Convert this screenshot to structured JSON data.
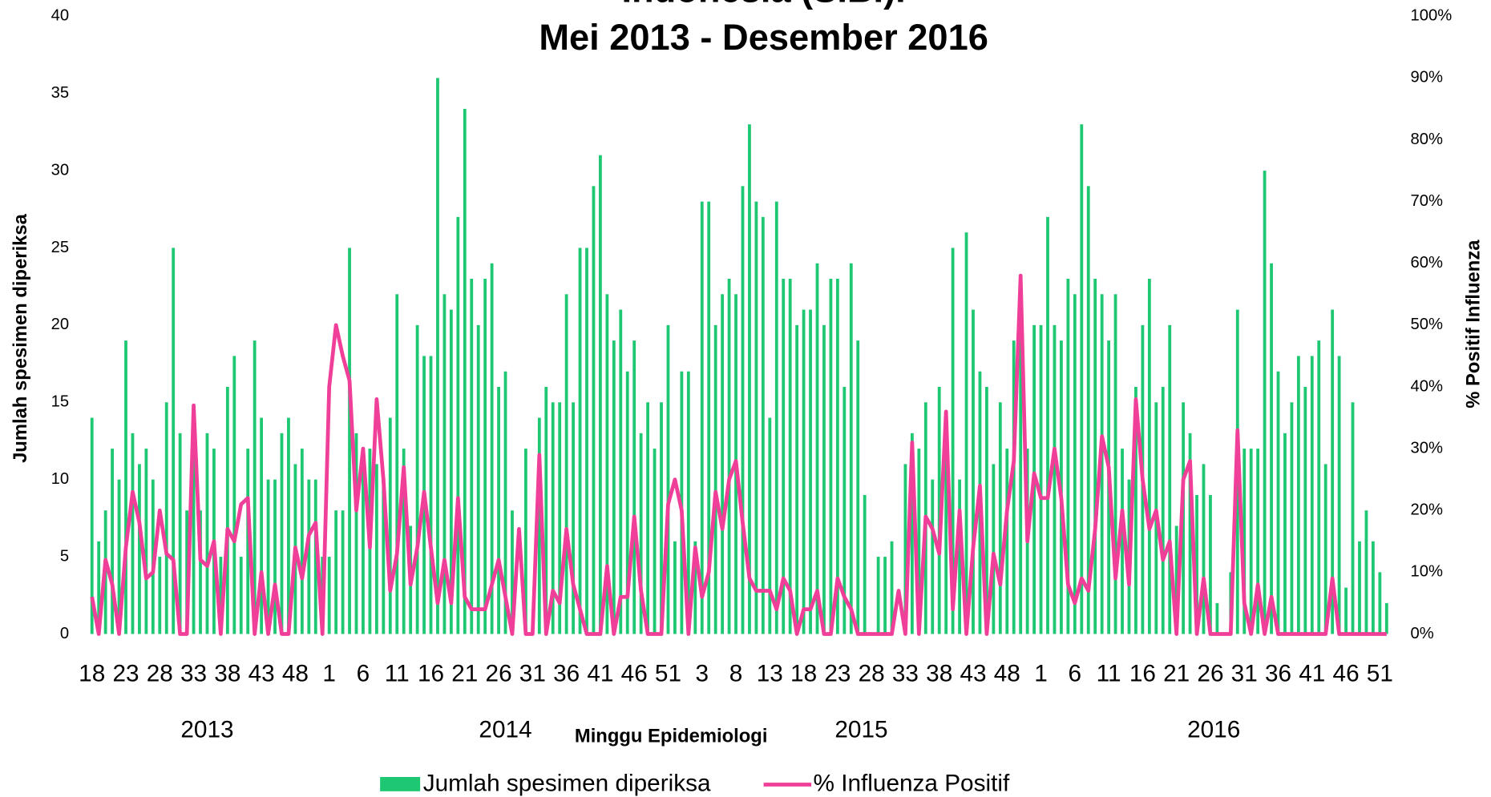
{
  "chart_data": {
    "type": "bar-line",
    "title": [
      "Indonesia (SIBI).",
      "Mei 2013 - Desember 2016"
    ],
    "x_label": "Minggu Epidemiologi",
    "y_label": "Jumlah spesimen diperiksa",
    "y2_label": "% Positif Influenza",
    "years": [
      {
        "label": "2013",
        "categories": [
          18,
          null,
          null,
          null,
          null,
          23,
          null,
          null,
          null,
          null,
          28,
          null,
          null,
          null,
          null,
          33,
          null,
          null,
          null,
          null,
          38,
          null,
          null,
          null,
          null,
          43,
          null,
          null,
          null,
          null,
          48,
          null,
          null,
          null,
          null
        ]
      },
      {
        "label": "2014",
        "categories": [
          1,
          null,
          null,
          null,
          null,
          6,
          null,
          null,
          null,
          null,
          11,
          null,
          null,
          null,
          null,
          16,
          null,
          null,
          null,
          null,
          21,
          null,
          null,
          null,
          null,
          26,
          null,
          null,
          null,
          null,
          31,
          null,
          null,
          null,
          null,
          36,
          null,
          null,
          null,
          null,
          41,
          null,
          null,
          null,
          null,
          46,
          null,
          null,
          null,
          null,
          51,
          null,
          null
        ]
      },
      {
        "label": "2015",
        "categories": [
          null,
          null,
          3,
          null,
          null,
          null,
          null,
          8,
          null,
          null,
          null,
          null,
          13,
          null,
          null,
          null,
          null,
          18,
          null,
          null,
          null,
          null,
          23,
          null,
          null,
          null,
          null,
          28,
          null,
          null,
          null,
          null,
          33,
          null,
          null,
          null,
          null,
          38,
          null,
          null,
          null,
          null,
          43,
          null,
          null,
          null,
          null,
          48,
          null,
          null,
          null,
          null
        ]
      },
      {
        "label": "2016",
        "categories": [
          1,
          null,
          null,
          null,
          null,
          6,
          null,
          null,
          null,
          null,
          11,
          null,
          null,
          null,
          null,
          16,
          null,
          null,
          null,
          null,
          21,
          null,
          null,
          null,
          null,
          26,
          null,
          null,
          null,
          null,
          31,
          null,
          null,
          null,
          null,
          36,
          null,
          null,
          null,
          null,
          41,
          null,
          null,
          null,
          null,
          46,
          null,
          null,
          null,
          null,
          51,
          null
        ]
      }
    ],
    "series": [
      {
        "name": "Jumlah spesimen diperiksa",
        "type": "bar",
        "color": "#1ec873",
        "values": [
          14,
          6,
          8,
          12,
          10,
          19,
          13,
          11,
          12,
          10,
          5,
          15,
          25,
          13,
          8,
          12,
          8,
          13,
          12,
          5,
          16,
          18,
          5,
          12,
          19,
          14,
          10,
          10,
          13,
          14,
          11,
          12,
          10,
          10,
          5,
          5,
          8,
          8,
          25,
          13,
          12,
          12,
          11,
          10,
          14,
          22,
          12,
          7,
          20,
          18,
          18,
          36,
          22,
          21,
          27,
          34,
          23,
          20,
          23,
          24,
          16,
          17,
          8,
          0,
          12,
          0,
          14,
          16,
          15,
          15,
          22,
          15,
          25,
          25,
          29,
          31,
          22,
          19,
          21,
          17,
          19,
          13,
          15,
          12,
          15,
          20,
          6,
          17,
          17,
          6,
          28,
          28,
          20,
          22,
          23,
          22,
          29,
          33,
          28,
          27,
          14,
          28,
          23,
          23,
          20,
          21,
          21,
          24,
          20,
          23,
          23,
          16,
          24,
          19,
          9,
          0,
          5,
          5,
          6,
          0,
          11,
          13,
          12,
          15,
          10,
          16,
          12,
          25,
          10,
          26,
          21,
          17,
          16,
          11,
          15,
          12,
          19,
          22,
          12,
          20,
          20,
          27,
          20,
          19,
          23,
          22,
          33,
          29,
          23,
          22,
          19,
          22,
          12,
          10,
          16,
          20,
          23,
          15,
          16,
          20,
          7,
          15,
          13,
          9,
          11,
          9,
          2,
          0,
          4,
          21,
          12,
          12,
          12,
          30,
          24,
          17,
          13,
          15,
          18,
          16,
          18,
          19,
          11,
          21,
          18,
          3,
          15,
          6,
          8,
          6,
          4,
          2
        ]
      },
      {
        "name": "% Influenza Positif",
        "type": "line",
        "axis": "y2",
        "color": "#ef3f98",
        "values": [
          6,
          0,
          12,
          8,
          0,
          14,
          23,
          18,
          9,
          10,
          20,
          13,
          12,
          0,
          0,
          37,
          12,
          11,
          15,
          0,
          17,
          15,
          21,
          22,
          0,
          10,
          0,
          8,
          0,
          0,
          14,
          9,
          16,
          18,
          0,
          40,
          50,
          45,
          41,
          20,
          30,
          14,
          38,
          25,
          7,
          13,
          27,
          8,
          14,
          23,
          14,
          5,
          12,
          5,
          22,
          6,
          4,
          4,
          4,
          8,
          12,
          6,
          0,
          17,
          0,
          0,
          29,
          0,
          7,
          5,
          17,
          8,
          4,
          0,
          0,
          0,
          11,
          0,
          6,
          6,
          19,
          7,
          0,
          0,
          0,
          21,
          25,
          20,
          0,
          14,
          6,
          10,
          23,
          17,
          25,
          28,
          18,
          9,
          7,
          7,
          7,
          4,
          9,
          7,
          0,
          4,
          4,
          7,
          0,
          0,
          9,
          6,
          4,
          0,
          0,
          0,
          0,
          0,
          0,
          7,
          0,
          31,
          0,
          19,
          17,
          13,
          36,
          4,
          20,
          0,
          14,
          24,
          0,
          13,
          8,
          20,
          28,
          58,
          15,
          26,
          22,
          22,
          30,
          22,
          8,
          5,
          9,
          7,
          17,
          32,
          27,
          9,
          20,
          8,
          38,
          25,
          17,
          20,
          12,
          15,
          0,
          25,
          28,
          0,
          9,
          0,
          0,
          0,
          0,
          33,
          5,
          0,
          8,
          0,
          6,
          0,
          0,
          0,
          0,
          0,
          0,
          0,
          0,
          9,
          0,
          0,
          0,
          0,
          0,
          0,
          0,
          0
        ]
      }
    ],
    "ylim": [
      0,
      40
    ],
    "yticks": [
      0,
      5,
      10,
      15,
      20,
      25,
      30,
      35,
      40
    ],
    "y2lim": [
      0,
      100
    ],
    "y2ticks": [
      {
        "value": 0,
        "label": "0%"
      },
      {
        "value": 10,
        "label": "10%"
      },
      {
        "value": 20,
        "label": "20%"
      },
      {
        "value": 30,
        "label": "30%"
      },
      {
        "value": 40,
        "label": "40%"
      },
      {
        "value": 50,
        "label": "50%"
      },
      {
        "value": 60,
        "label": "60%"
      },
      {
        "value": 70,
        "label": "70%"
      },
      {
        "value": 80,
        "label": "80%"
      },
      {
        "value": 90,
        "label": "90%"
      },
      {
        "value": 100,
        "label": "100%"
      }
    ],
    "legend": "bottom"
  }
}
